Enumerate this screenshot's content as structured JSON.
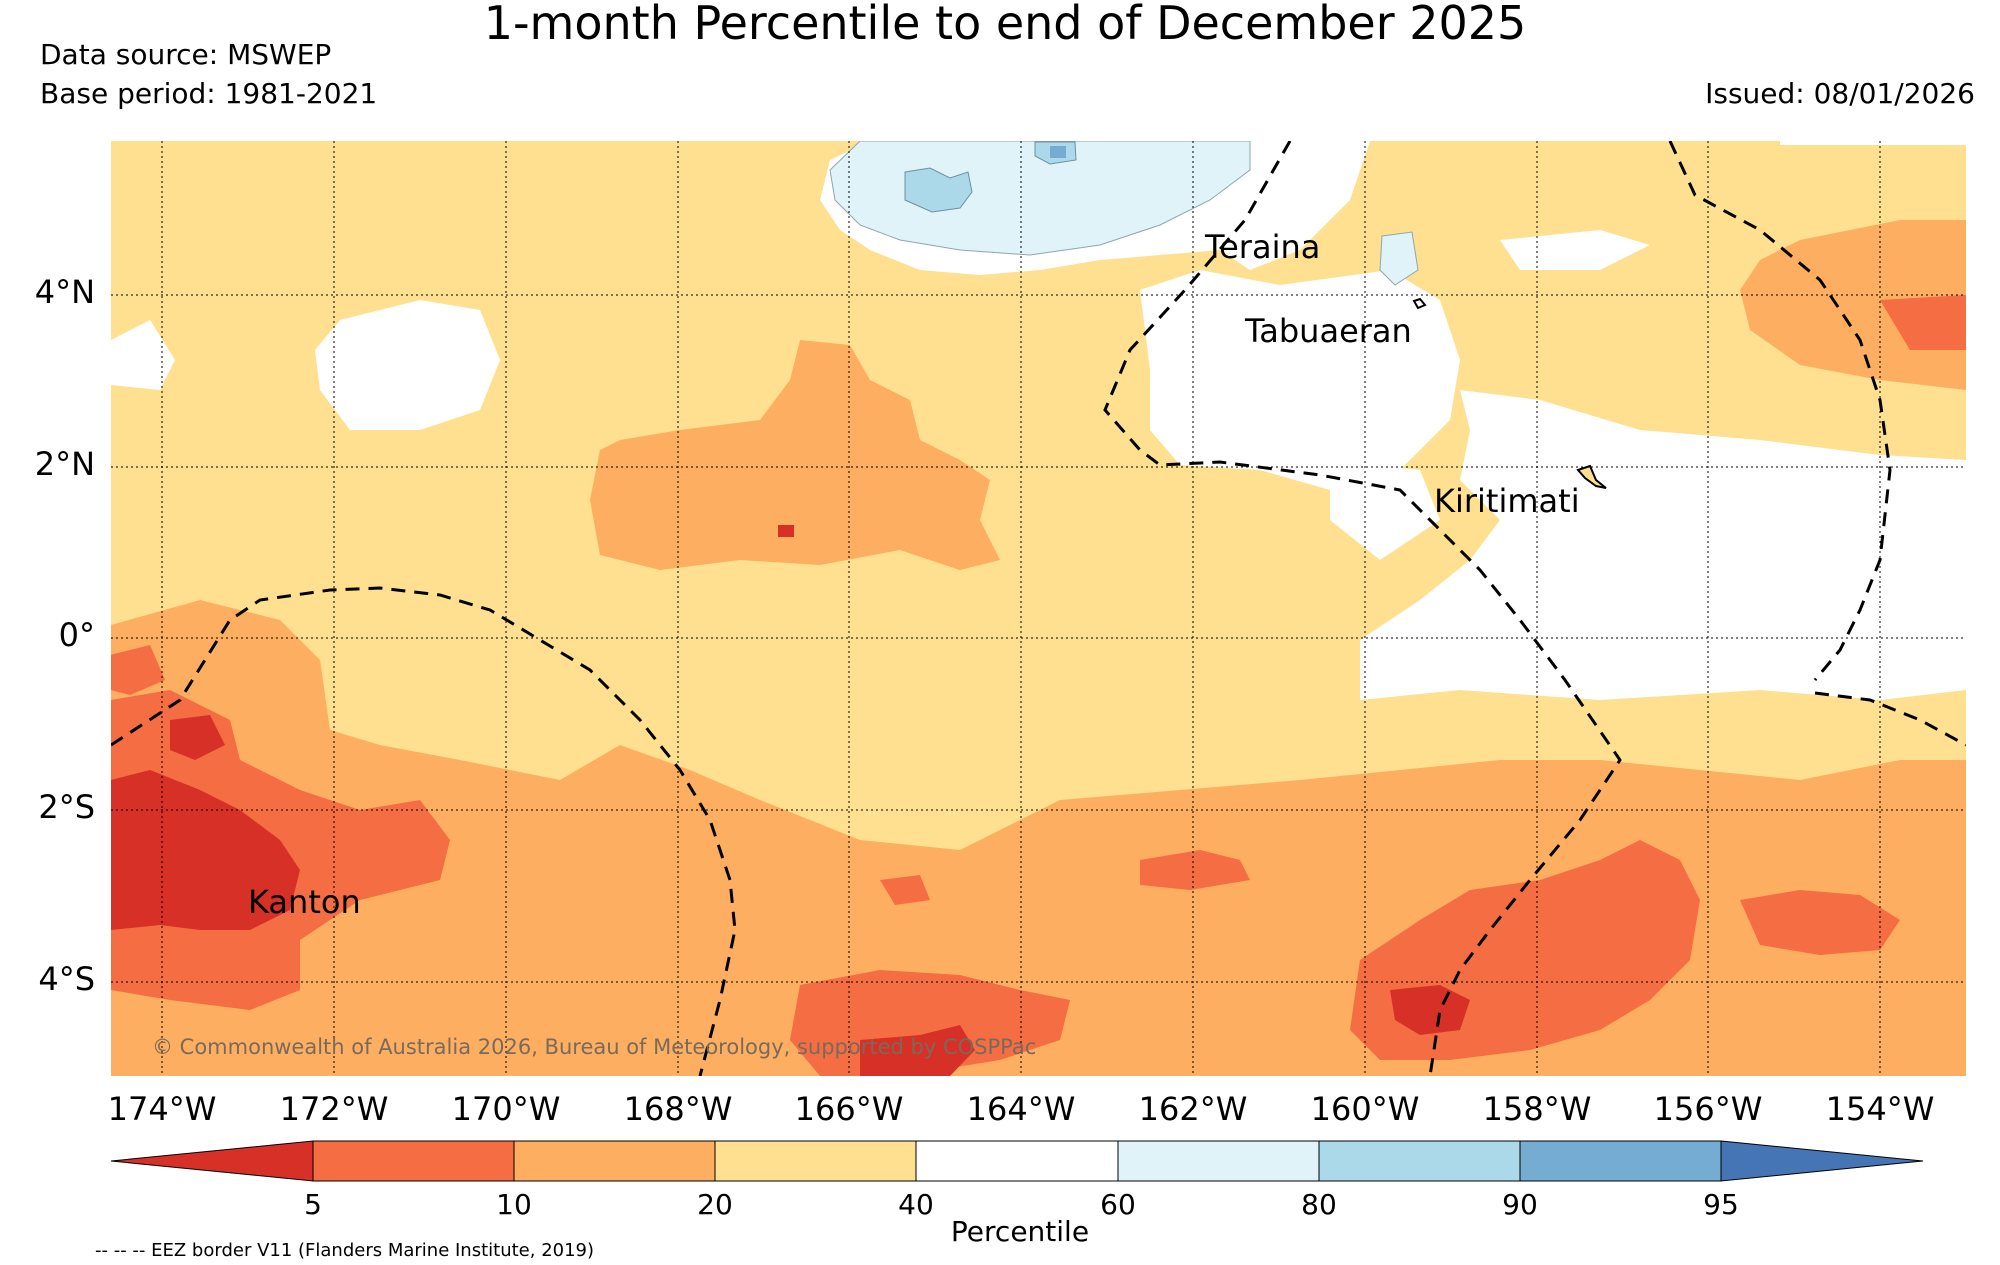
{
  "title": "1-month Percentile to end of December 2025",
  "data_source": "Data source: MSWEP",
  "base_period": "Base period: 1981-2021",
  "issued": "Issued: 08/01/2026",
  "lat_labels": [
    "4°N",
    "2°N",
    "0°",
    "2°S",
    "4°S"
  ],
  "lon_labels": [
    "174°W",
    "172°W",
    "170°W",
    "168°W",
    "166°W",
    "164°W",
    "162°W",
    "160°W",
    "158°W",
    "156°W",
    "154°W"
  ],
  "places": {
    "teraina": "Teraina",
    "tabuaeran": "Tabuaeran",
    "kiritimati": "Kiritimati",
    "kanton": "Kanton"
  },
  "copyright": "© Commonwealth of Australia 2026, Bureau of Meteorology, supported by COSPPac",
  "colorbar": {
    "title": "Percentile",
    "ticks": [
      "5",
      "10",
      "20",
      "40",
      "60",
      "80",
      "90",
      "95"
    ],
    "colors": {
      "below_5": "#d73027",
      "p5_10": "#f46d43",
      "p10_20": "#fdae61",
      "p20_40": "#fee090",
      "p40_60": "#ffffff",
      "p60_80": "#e0f3f8",
      "p80_90": "#abd9e9",
      "p90_95": "#74add1",
      "above_95": "#4575b4"
    }
  },
  "eez_note": "-- -- -- EEZ border V11 (Flanders Marine Institute, 2019)"
}
